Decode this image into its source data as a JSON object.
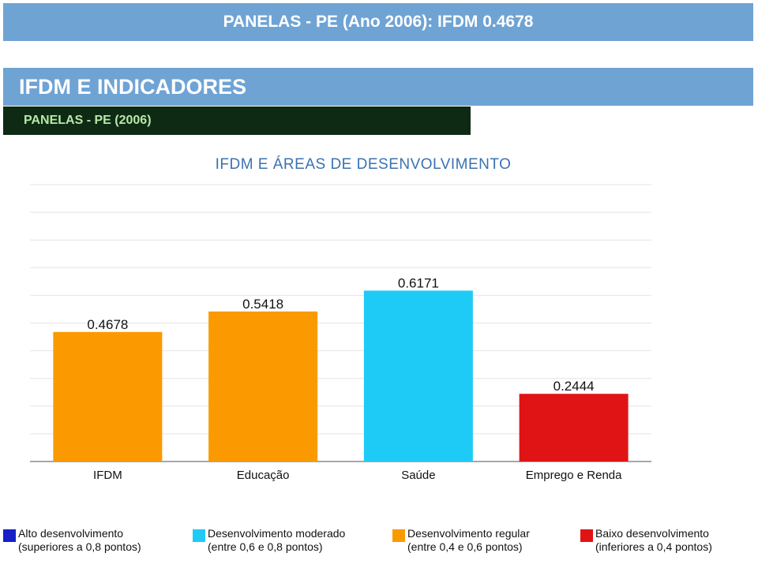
{
  "header": {
    "title": "PANELAS - PE (Ano 2006): IFDM 0.4678"
  },
  "section": {
    "title": "IFDM E INDICADORES",
    "subtitle": "PANELAS - PE (2006)"
  },
  "chart_data": {
    "type": "bar",
    "title": "IFDM E ÁREAS DE DESENVOLVIMENTO",
    "categories": [
      "IFDM",
      "Educação",
      "Saúde",
      "Emprego e Renda"
    ],
    "values": [
      0.4678,
      0.5418,
      0.6171,
      0.2444
    ],
    "value_labels": [
      "0.4678",
      "0.5418",
      "0.6171",
      "0.2444"
    ],
    "bar_colors": [
      "#fa9a00",
      "#fa9a00",
      "#1ecbf7",
      "#e01414"
    ],
    "ylim": [
      0,
      1
    ],
    "grid": true,
    "xlabel": "",
    "ylabel": ""
  },
  "legend": {
    "items": [
      {
        "label": "Alto desenvolvimento",
        "detail": "(superiores a 0,8 pontos)",
        "color": "#1520c8"
      },
      {
        "label": "Desenvolvimento moderado",
        "detail": "(entre 0,6 e 0,8 pontos)",
        "color": "#1ecbf7"
      },
      {
        "label": "Desenvolvimento regular",
        "detail": "(entre 0,4 e 0,6 pontos)",
        "color": "#fa9a00"
      },
      {
        "label": "Baixo desenvolvimento",
        "detail": "(inferiores a 0,4 pontos)",
        "color": "#e01414"
      }
    ]
  }
}
